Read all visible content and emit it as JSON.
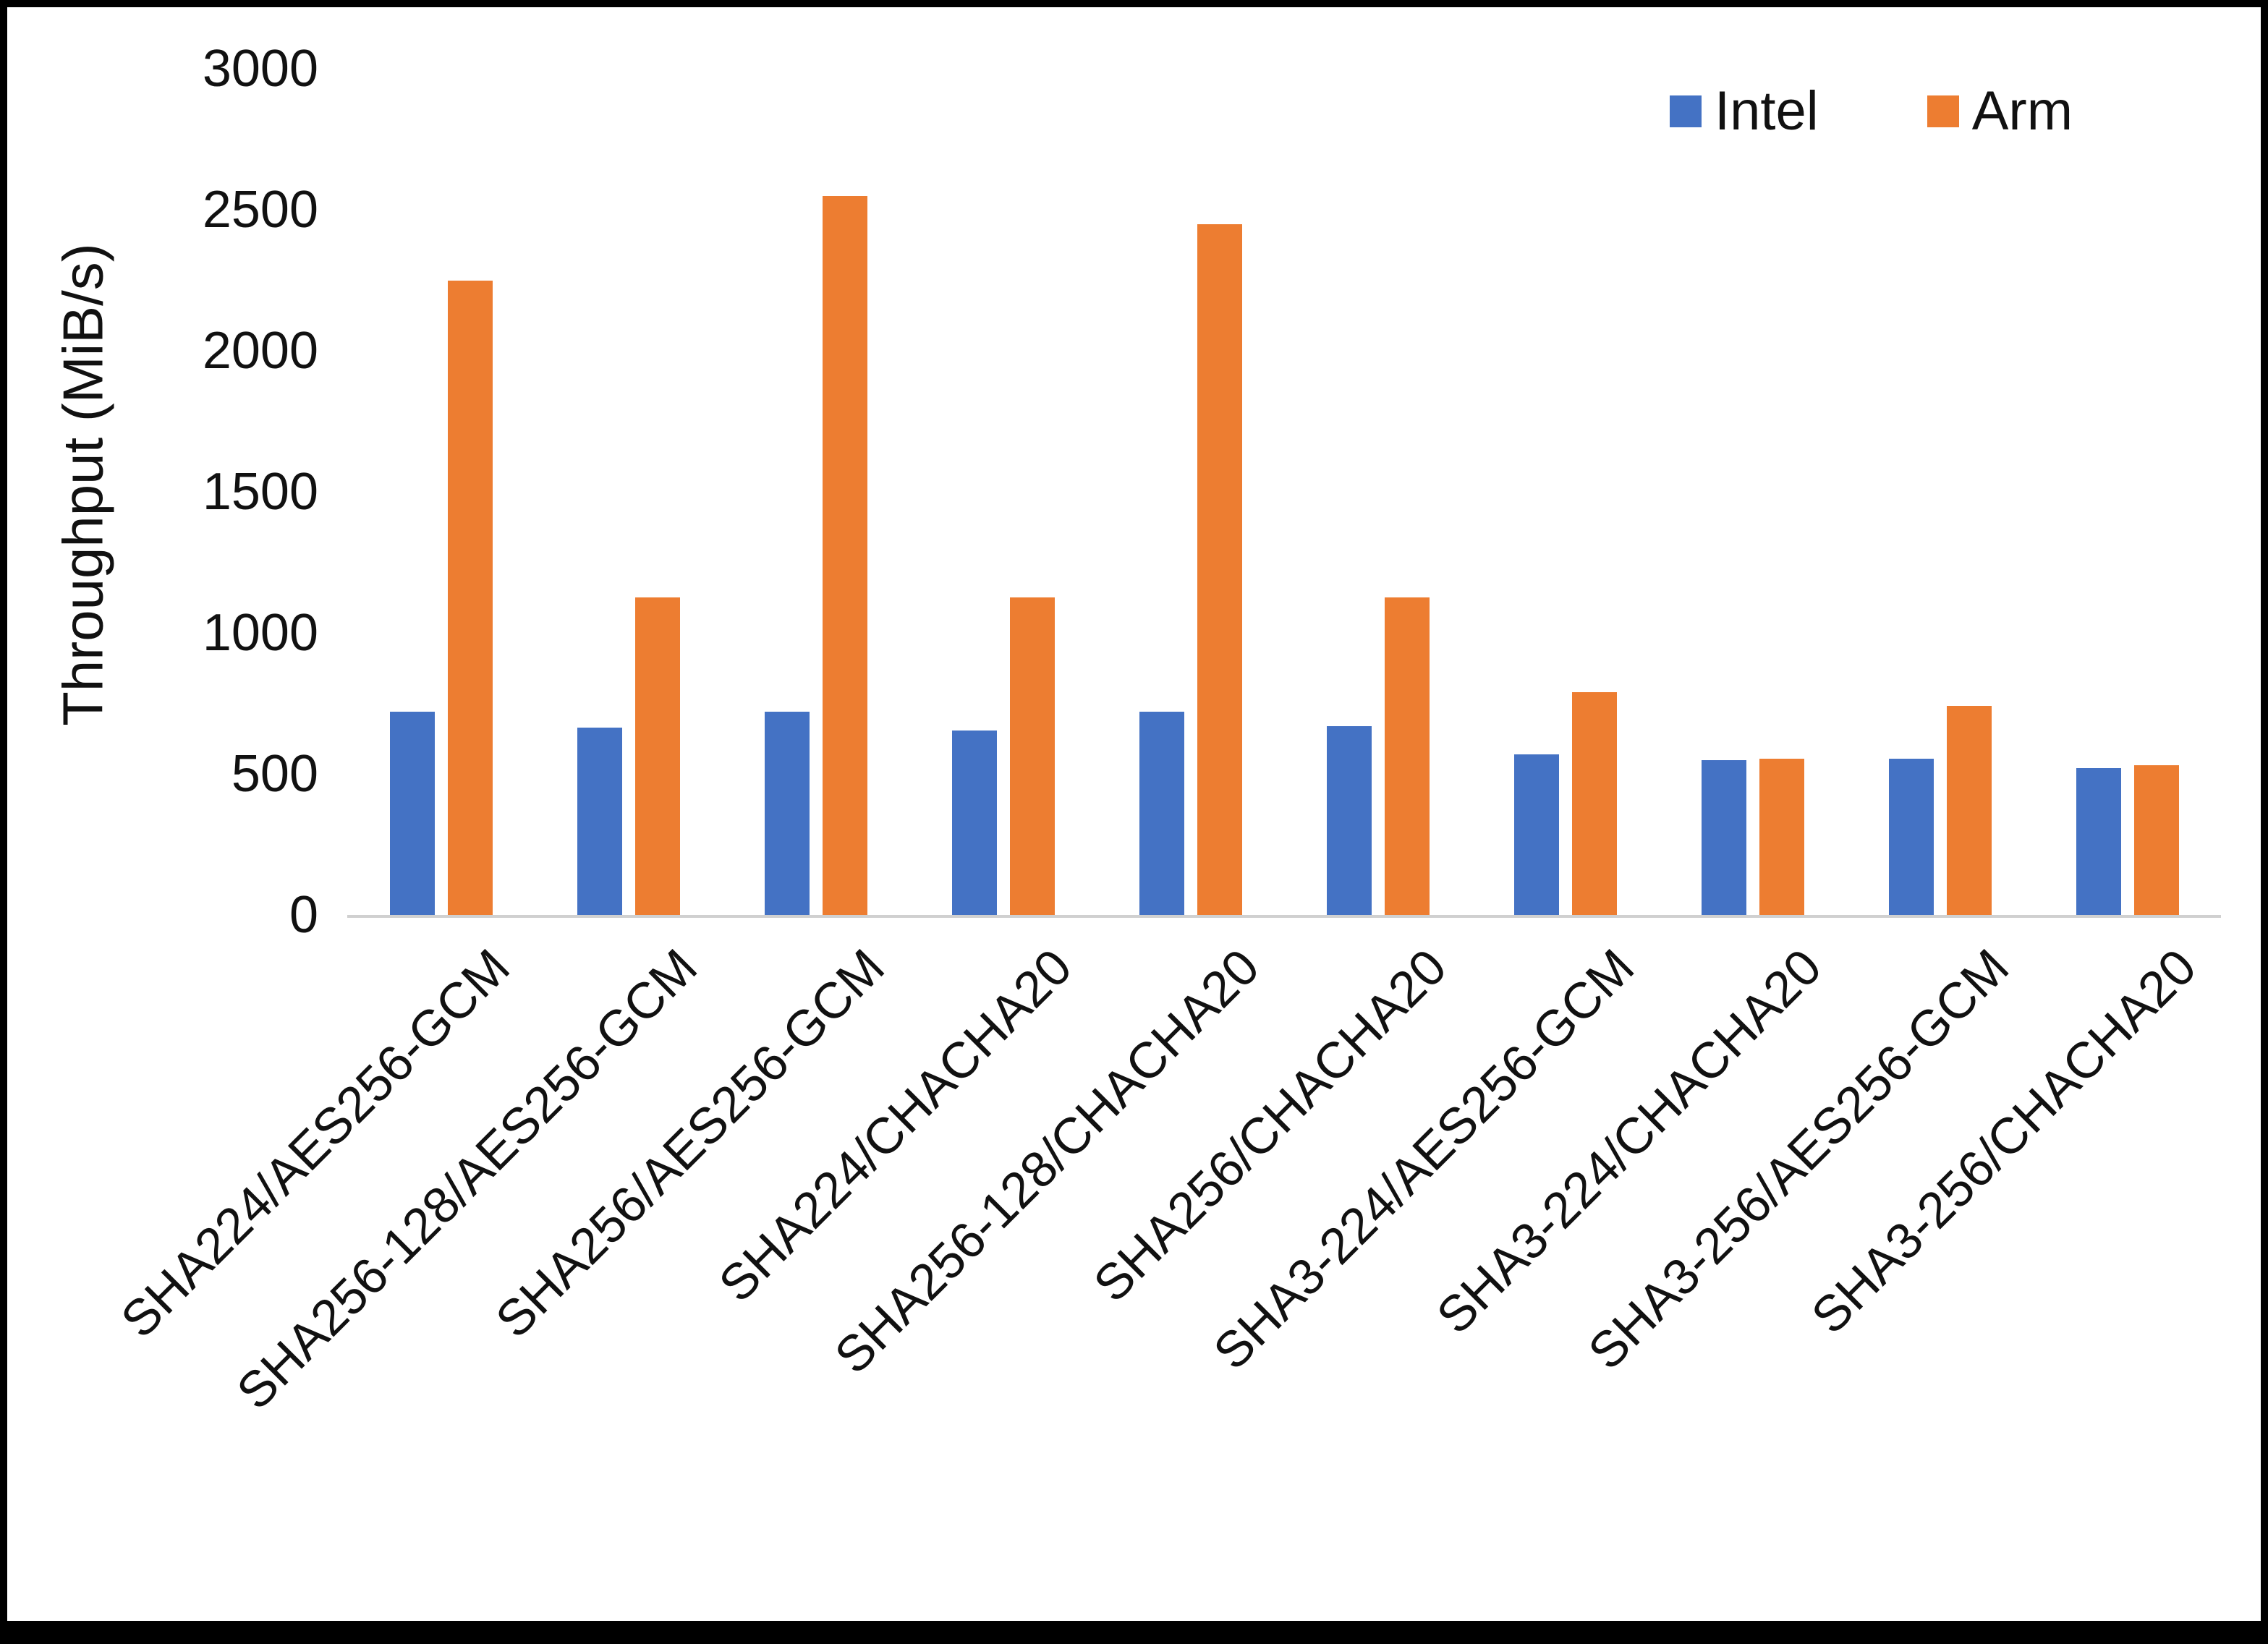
{
  "page": {
    "background": "#ffffff",
    "border_color": "#000000"
  },
  "chart_data": {
    "type": "bar",
    "title": "",
    "xlabel": "",
    "ylabel": "Throughput (MiB/s)",
    "ylim": [
      0,
      3000
    ],
    "ytick_step": 500,
    "grid": false,
    "legend_position": "top-right",
    "categories": [
      "SHA224/AES256-GCM",
      "SHA256-128/AES256-GCM",
      "SHA256/AES256-GCM",
      "SHA224/CHACHA20",
      "SHA256-128/CHACHA20",
      "SHA256/CHACHA20",
      "SHA3-224/AES256-GCM",
      "SHA3-224/CHACHA20",
      "SHA3-256/AES256-GCM",
      "SHA3-256/CHACHA20"
    ],
    "series": [
      {
        "name": "Intel",
        "color": "#4472C4",
        "values": [
          720,
          665,
          720,
          655,
          720,
          670,
          570,
          550,
          555,
          520
        ]
      },
      {
        "name": "Arm",
        "color": "#ED7D31",
        "values": [
          2250,
          1125,
          2550,
          1125,
          2450,
          1125,
          790,
          555,
          740,
          530
        ]
      }
    ]
  }
}
